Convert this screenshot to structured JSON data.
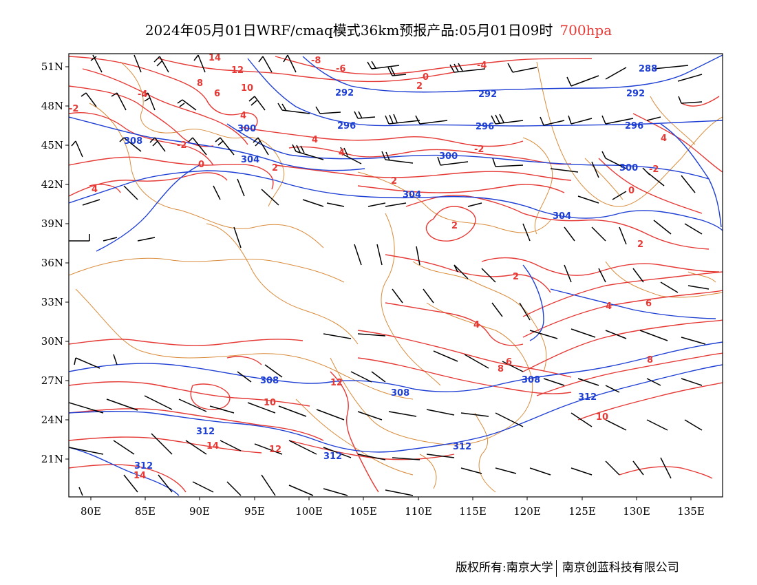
{
  "title": {
    "text": "2024年05月01日WRF/cmaq模式36km预报产品:05月01日09时",
    "level": "700hpa"
  },
  "colors": {
    "temperature": "#e53935",
    "height": "#1e3fd4",
    "border": "#d98b3a",
    "wind": "#000000",
    "level_text": "#e53935"
  },
  "axes": {
    "lon_labels": [
      "80E",
      "85E",
      "90E",
      "95E",
      "100E",
      "105E",
      "110E",
      "115E",
      "120E",
      "125E",
      "130E",
      "135E"
    ],
    "lat_labels": [
      "51N",
      "48N",
      "45N",
      "42N",
      "39N",
      "36N",
      "33N",
      "30N",
      "27N",
      "24N",
      "21N"
    ]
  },
  "contours": {
    "height_labels": [
      "288",
      "292",
      "292",
      "292",
      "296",
      "296",
      "296",
      "300",
      "300",
      "300",
      "304",
      "304",
      "304",
      "308",
      "308",
      "308",
      "308",
      "312",
      "312",
      "312",
      "312",
      "312"
    ],
    "temp_labels": [
      "14",
      "12",
      "10",
      "8",
      "6",
      "4",
      "-2",
      "-2",
      "-4",
      "-6",
      "-8",
      "0",
      "2",
      "4",
      "-2",
      "0",
      "2",
      "4",
      "2",
      "-4",
      "4",
      "2",
      "6",
      "4",
      "2",
      "-2",
      "0",
      "2",
      "4",
      "6",
      "8",
      "8",
      "10",
      "10",
      "12",
      "12",
      "14",
      "14",
      "4"
    ]
  },
  "footer": {
    "left": "版权所有:南京大学",
    "right": "南京创蓝科技有限公司"
  }
}
